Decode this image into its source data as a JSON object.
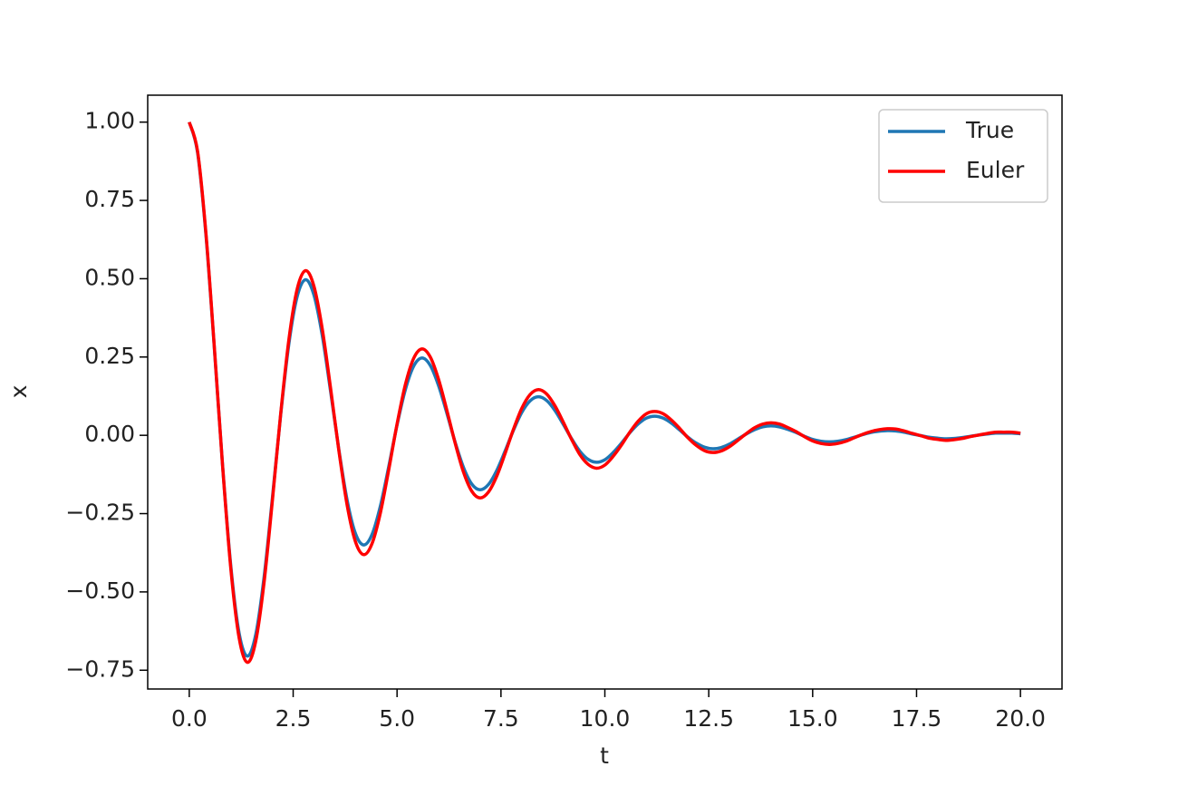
{
  "chart_data": {
    "type": "line",
    "xlabel": "t",
    "ylabel": "x",
    "x": [
      0,
      0.2,
      0.4,
      0.6,
      0.8,
      1,
      1.2,
      1.4,
      1.6,
      1.8,
      2,
      2.2,
      2.4,
      2.6,
      2.8,
      3,
      3.2,
      3.4,
      3.6,
      3.8,
      4,
      4.2,
      4.4,
      4.6,
      4.8,
      5,
      5.2,
      5.4,
      5.6,
      5.8,
      6,
      6.2,
      6.4,
      6.6,
      6.8,
      7,
      7.2,
      7.4,
      7.6,
      7.8,
      8,
      8.2,
      8.4,
      8.6,
      8.8,
      9,
      9.2,
      9.4,
      9.6,
      9.8,
      10,
      10.2,
      10.4,
      10.6,
      10.8,
      11,
      11.2,
      11.4,
      11.6,
      11.8,
      12,
      12.2,
      12.4,
      12.6,
      12.8,
      13,
      13.2,
      13.4,
      13.6,
      13.8,
      14,
      14.2,
      14.4,
      14.6,
      14.8,
      15,
      15.2,
      15.4,
      15.6,
      15.8,
      16,
      16.2,
      16.4,
      16.6,
      16.8,
      17,
      17.2,
      17.4,
      17.6,
      17.8,
      18,
      18.2,
      18.4,
      18.6,
      18.8,
      19,
      19.2,
      19.4,
      19.6,
      19.8,
      20
    ],
    "series": [
      {
        "name": "True",
        "color": "#1f77b4",
        "values": [
          1.0,
          0.903,
          0.642,
          0.285,
          -0.093,
          -0.418,
          -0.632,
          -0.705,
          -0.636,
          -0.453,
          -0.201,
          0.066,
          0.295,
          0.445,
          0.497,
          0.448,
          0.319,
          0.141,
          -0.046,
          -0.208,
          -0.314,
          -0.35,
          -0.316,
          -0.225,
          -0.1,
          0.033,
          0.146,
          0.221,
          0.247,
          0.223,
          0.158,
          0.07,
          -0.023,
          -0.103,
          -0.156,
          -0.174,
          -0.157,
          -0.112,
          -0.05,
          0.016,
          0.073,
          0.11,
          0.123,
          0.111,
          0.079,
          0.035,
          -0.011,
          -0.051,
          -0.077,
          -0.086,
          -0.078,
          -0.055,
          -0.025,
          0.008,
          0.036,
          0.055,
          0.061,
          0.055,
          0.039,
          0.017,
          -0.006,
          -0.025,
          -0.038,
          -0.043,
          -0.039,
          -0.028,
          -0.012,
          0.004,
          0.018,
          0.027,
          0.03,
          0.027,
          0.019,
          0.009,
          -0.003,
          -0.013,
          -0.019,
          -0.021,
          -0.019,
          -0.014,
          -0.006,
          0.002,
          0.009,
          0.013,
          0.015,
          0.014,
          0.01,
          0.004,
          -0.001,
          -0.006,
          -0.009,
          -0.011,
          -0.01,
          -0.007,
          -0.003,
          0.001,
          0.004,
          0.007,
          0.007,
          0.007,
          0.005
        ]
      },
      {
        "name": "Euler",
        "color": "#ff0000",
        "values": [
          1.0,
          0.907,
          0.647,
          0.288,
          -0.094,
          -0.426,
          -0.647,
          -0.725,
          -0.657,
          -0.47,
          -0.209,
          0.069,
          0.309,
          0.469,
          0.526,
          0.476,
          0.34,
          0.151,
          -0.049,
          -0.224,
          -0.34,
          -0.381,
          -0.345,
          -0.247,
          -0.11,
          0.036,
          0.162,
          0.246,
          0.276,
          0.25,
          0.178,
          0.079,
          -0.026,
          -0.118,
          -0.179,
          -0.2,
          -0.181,
          -0.13,
          -0.058,
          0.019,
          0.086,
          0.13,
          0.146,
          0.132,
          0.094,
          0.042,
          -0.013,
          -0.062,
          -0.093,
          -0.105,
          -0.095,
          -0.067,
          -0.031,
          0.01,
          0.045,
          0.069,
          0.076,
          0.069,
          0.049,
          0.022,
          -0.008,
          -0.032,
          -0.049,
          -0.055,
          -0.05,
          -0.036,
          -0.016,
          0.005,
          0.024,
          0.036,
          0.04,
          0.036,
          0.025,
          0.012,
          -0.004,
          -0.018,
          -0.026,
          -0.029,
          -0.026,
          -0.019,
          -0.008,
          0.003,
          0.012,
          0.018,
          0.021,
          0.02,
          0.014,
          0.006,
          -0.001,
          -0.009,
          -0.013,
          -0.016,
          -0.014,
          -0.01,
          -0.004,
          0.001,
          0.006,
          0.01,
          0.01,
          0.01,
          0.007
        ]
      }
    ],
    "xlim": [
      -1,
      21
    ],
    "ylim": [
      -0.81,
      1.086
    ],
    "xticks": [
      {
        "value": 0,
        "label": "0.0"
      },
      2.5,
      {
        "value": 5,
        "label": "5.0"
      },
      7.5,
      {
        "value": 10,
        "label": "10.0"
      },
      12.5,
      {
        "value": 15,
        "label": "15.0"
      },
      17.5,
      {
        "value": 20,
        "label": "20.0"
      }
    ],
    "yticks": [
      {
        "value": -0.75,
        "label": "−0.75"
      },
      {
        "value": -0.5,
        "label": "−0.50"
      },
      {
        "value": -0.25,
        "label": "−0.25"
      },
      {
        "value": 0,
        "label": "0.00"
      },
      {
        "value": 0.25,
        "label": "0.25"
      },
      {
        "value": 0.5,
        "label": "0.50"
      },
      {
        "value": 0.75,
        "label": "0.75"
      },
      {
        "value": 1,
        "label": "1.00"
      }
    ],
    "grid": false,
    "legend": "upper right"
  }
}
